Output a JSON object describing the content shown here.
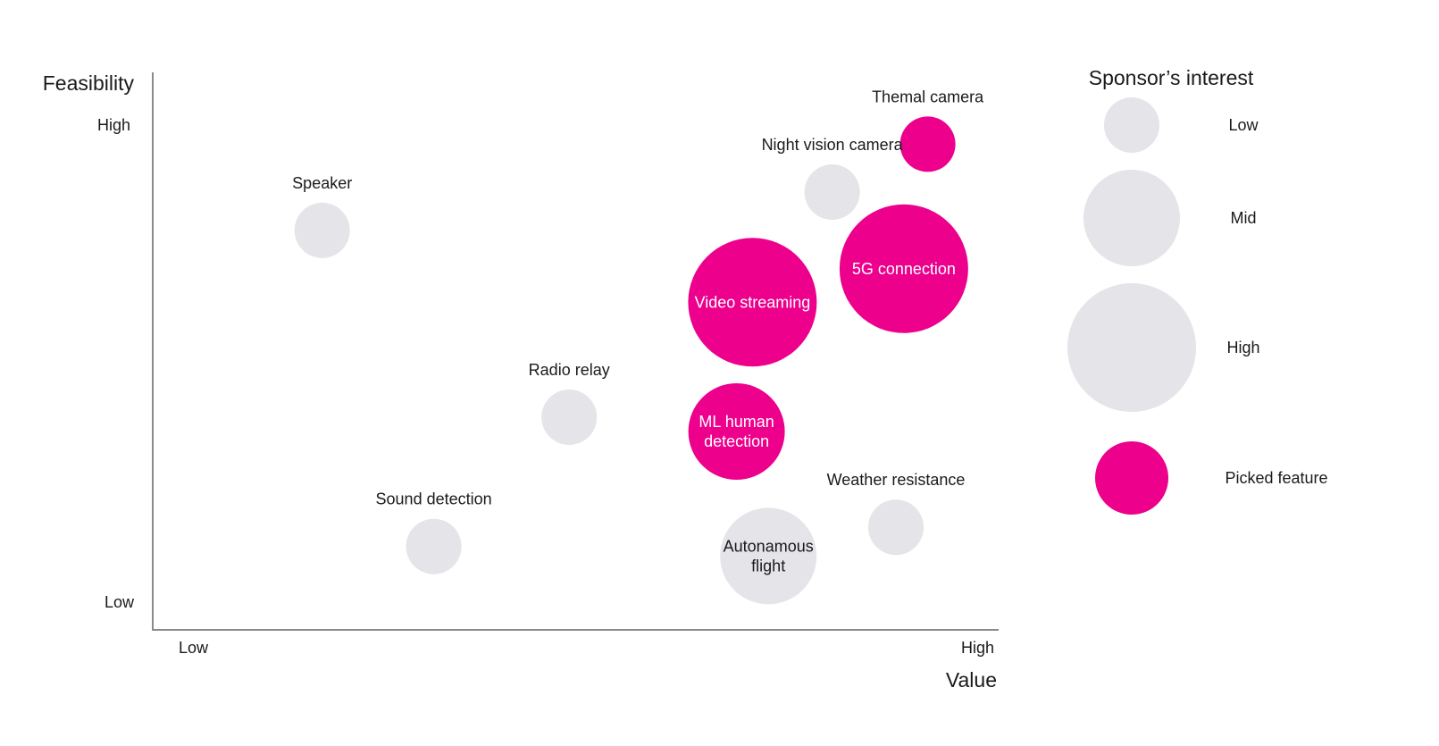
{
  "chart_data": {
    "type": "bubble",
    "title": "",
    "xlabel": "Value",
    "ylabel": "Feasibility",
    "x_ticks": [
      "Low",
      "High"
    ],
    "y_ticks": [
      "Low",
      "High"
    ],
    "xlim": [
      0,
      100
    ],
    "ylim": [
      0,
      100
    ],
    "grid": false,
    "legend": {
      "title": "Sponsor’s interest",
      "placement": "right",
      "items": [
        {
          "label": "Low",
          "size": "low",
          "picked": false
        },
        {
          "label": "Mid",
          "size": "mid",
          "picked": false
        },
        {
          "label": "High",
          "size": "high",
          "picked": false
        },
        {
          "label": "Picked feature",
          "size": "picked",
          "picked": true
        }
      ]
    },
    "colors": {
      "picked": "#EC008C",
      "not_picked": "#E4E4E9",
      "axis": "#8A8A8A",
      "text": "#1A1A1A"
    },
    "points": [
      {
        "label": "Themal camera",
        "x": 92,
        "y": 96,
        "interest": "low",
        "picked": true,
        "label_position": "above"
      },
      {
        "label": "Night vision camera",
        "x": 80,
        "y": 86,
        "interest": "low",
        "picked": false,
        "label_position": "above"
      },
      {
        "label": "Speaker",
        "x": 16,
        "y": 78,
        "interest": "low",
        "picked": false,
        "label_position": "above"
      },
      {
        "label": "5G connection",
        "x": 89,
        "y": 70,
        "interest": "high",
        "picked": true,
        "label_position": "inside"
      },
      {
        "label": "Video streaming",
        "x": 70,
        "y": 63,
        "interest": "high",
        "picked": true,
        "label_position": "inside"
      },
      {
        "label": "Radio relay",
        "x": 47,
        "y": 39,
        "interest": "low",
        "picked": false,
        "label_position": "above"
      },
      {
        "label": "ML human detection",
        "x": 68,
        "y": 36,
        "interest": "mid",
        "picked": true,
        "label_position": "inside"
      },
      {
        "label": "Weather resistance",
        "x": 88,
        "y": 16,
        "interest": "low",
        "picked": false,
        "label_position": "above"
      },
      {
        "label": "Sound detection",
        "x": 30,
        "y": 12,
        "interest": "low",
        "picked": false,
        "label_position": "above"
      },
      {
        "label": "Autonamous flight",
        "x": 72,
        "y": 10,
        "interest": "mid",
        "picked": false,
        "label_position": "inside"
      }
    ]
  }
}
